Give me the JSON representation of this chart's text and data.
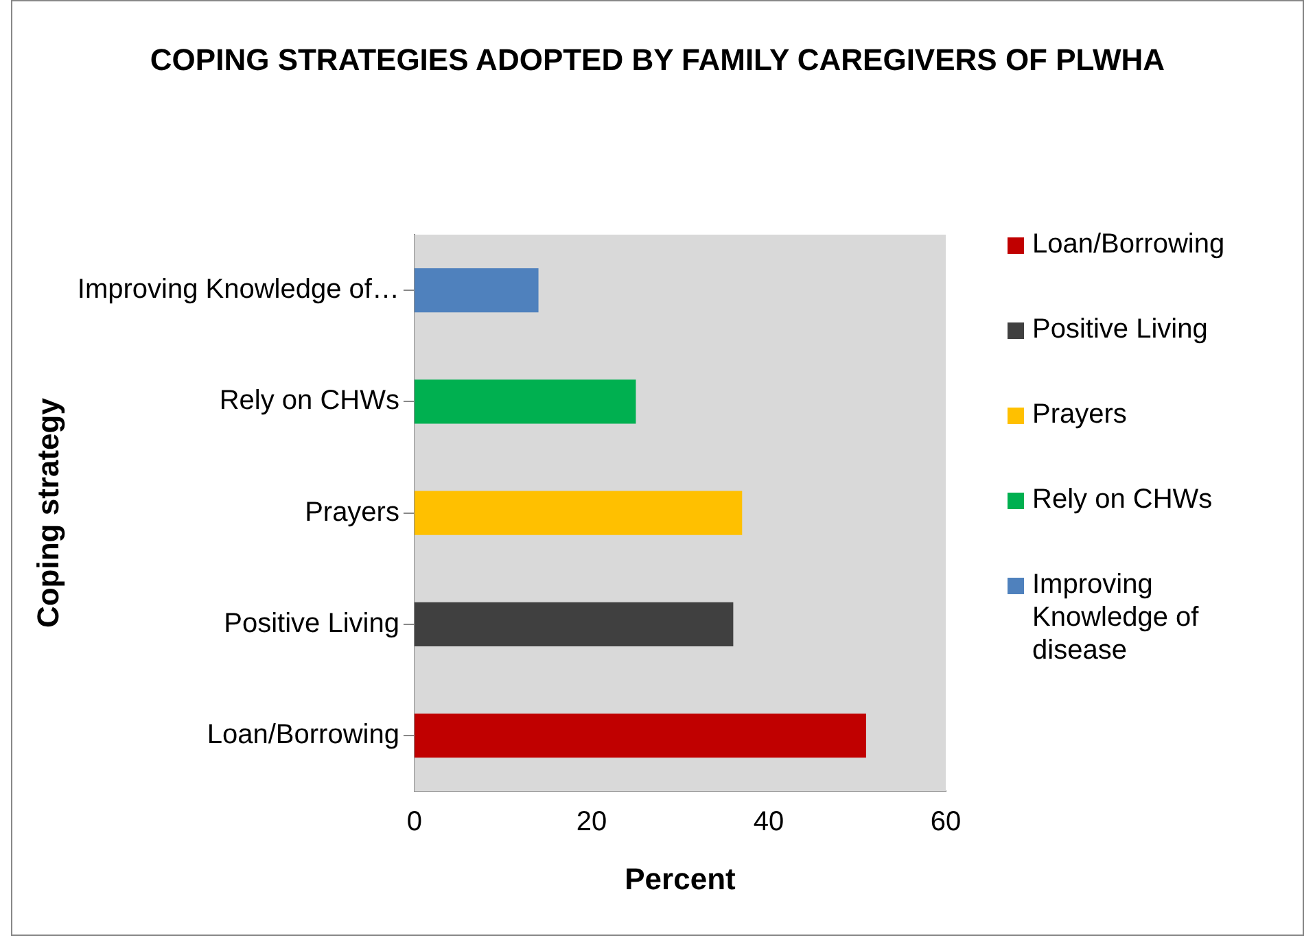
{
  "chart_data": {
    "type": "bar",
    "orientation": "horizontal",
    "title": "COPING STRATEGIES ADOPTED BY FAMILY CAREGIVERS OF PLWHA",
    "xlabel": "Percent",
    "ylabel": "Coping strategy",
    "categories": [
      "Improving Knowledge of…",
      "Rely on CHWs",
      "Prayers",
      "Positive Living",
      "Loan/Borrowing"
    ],
    "series": [
      {
        "name": "Loan/Borrowing",
        "color": "#c00000",
        "values": [
          null,
          null,
          null,
          null,
          51
        ]
      },
      {
        "name": "Positive Living",
        "color": "#404040",
        "values": [
          null,
          null,
          null,
          36,
          null
        ]
      },
      {
        "name": "Prayers",
        "color": "#ffc000",
        "values": [
          null,
          null,
          37,
          null,
          null
        ]
      },
      {
        "name": "Rely on CHWs",
        "color": "#00b050",
        "values": [
          null,
          25,
          null,
          null,
          null
        ]
      },
      {
        "name": "Improving Knowledge of disease",
        "color": "#4f81bd",
        "values": [
          14,
          null,
          null,
          null,
          null
        ]
      }
    ],
    "xlim": [
      0,
      60
    ],
    "xticks": [
      0,
      20,
      40,
      60
    ],
    "grid": false,
    "legend": "right"
  }
}
